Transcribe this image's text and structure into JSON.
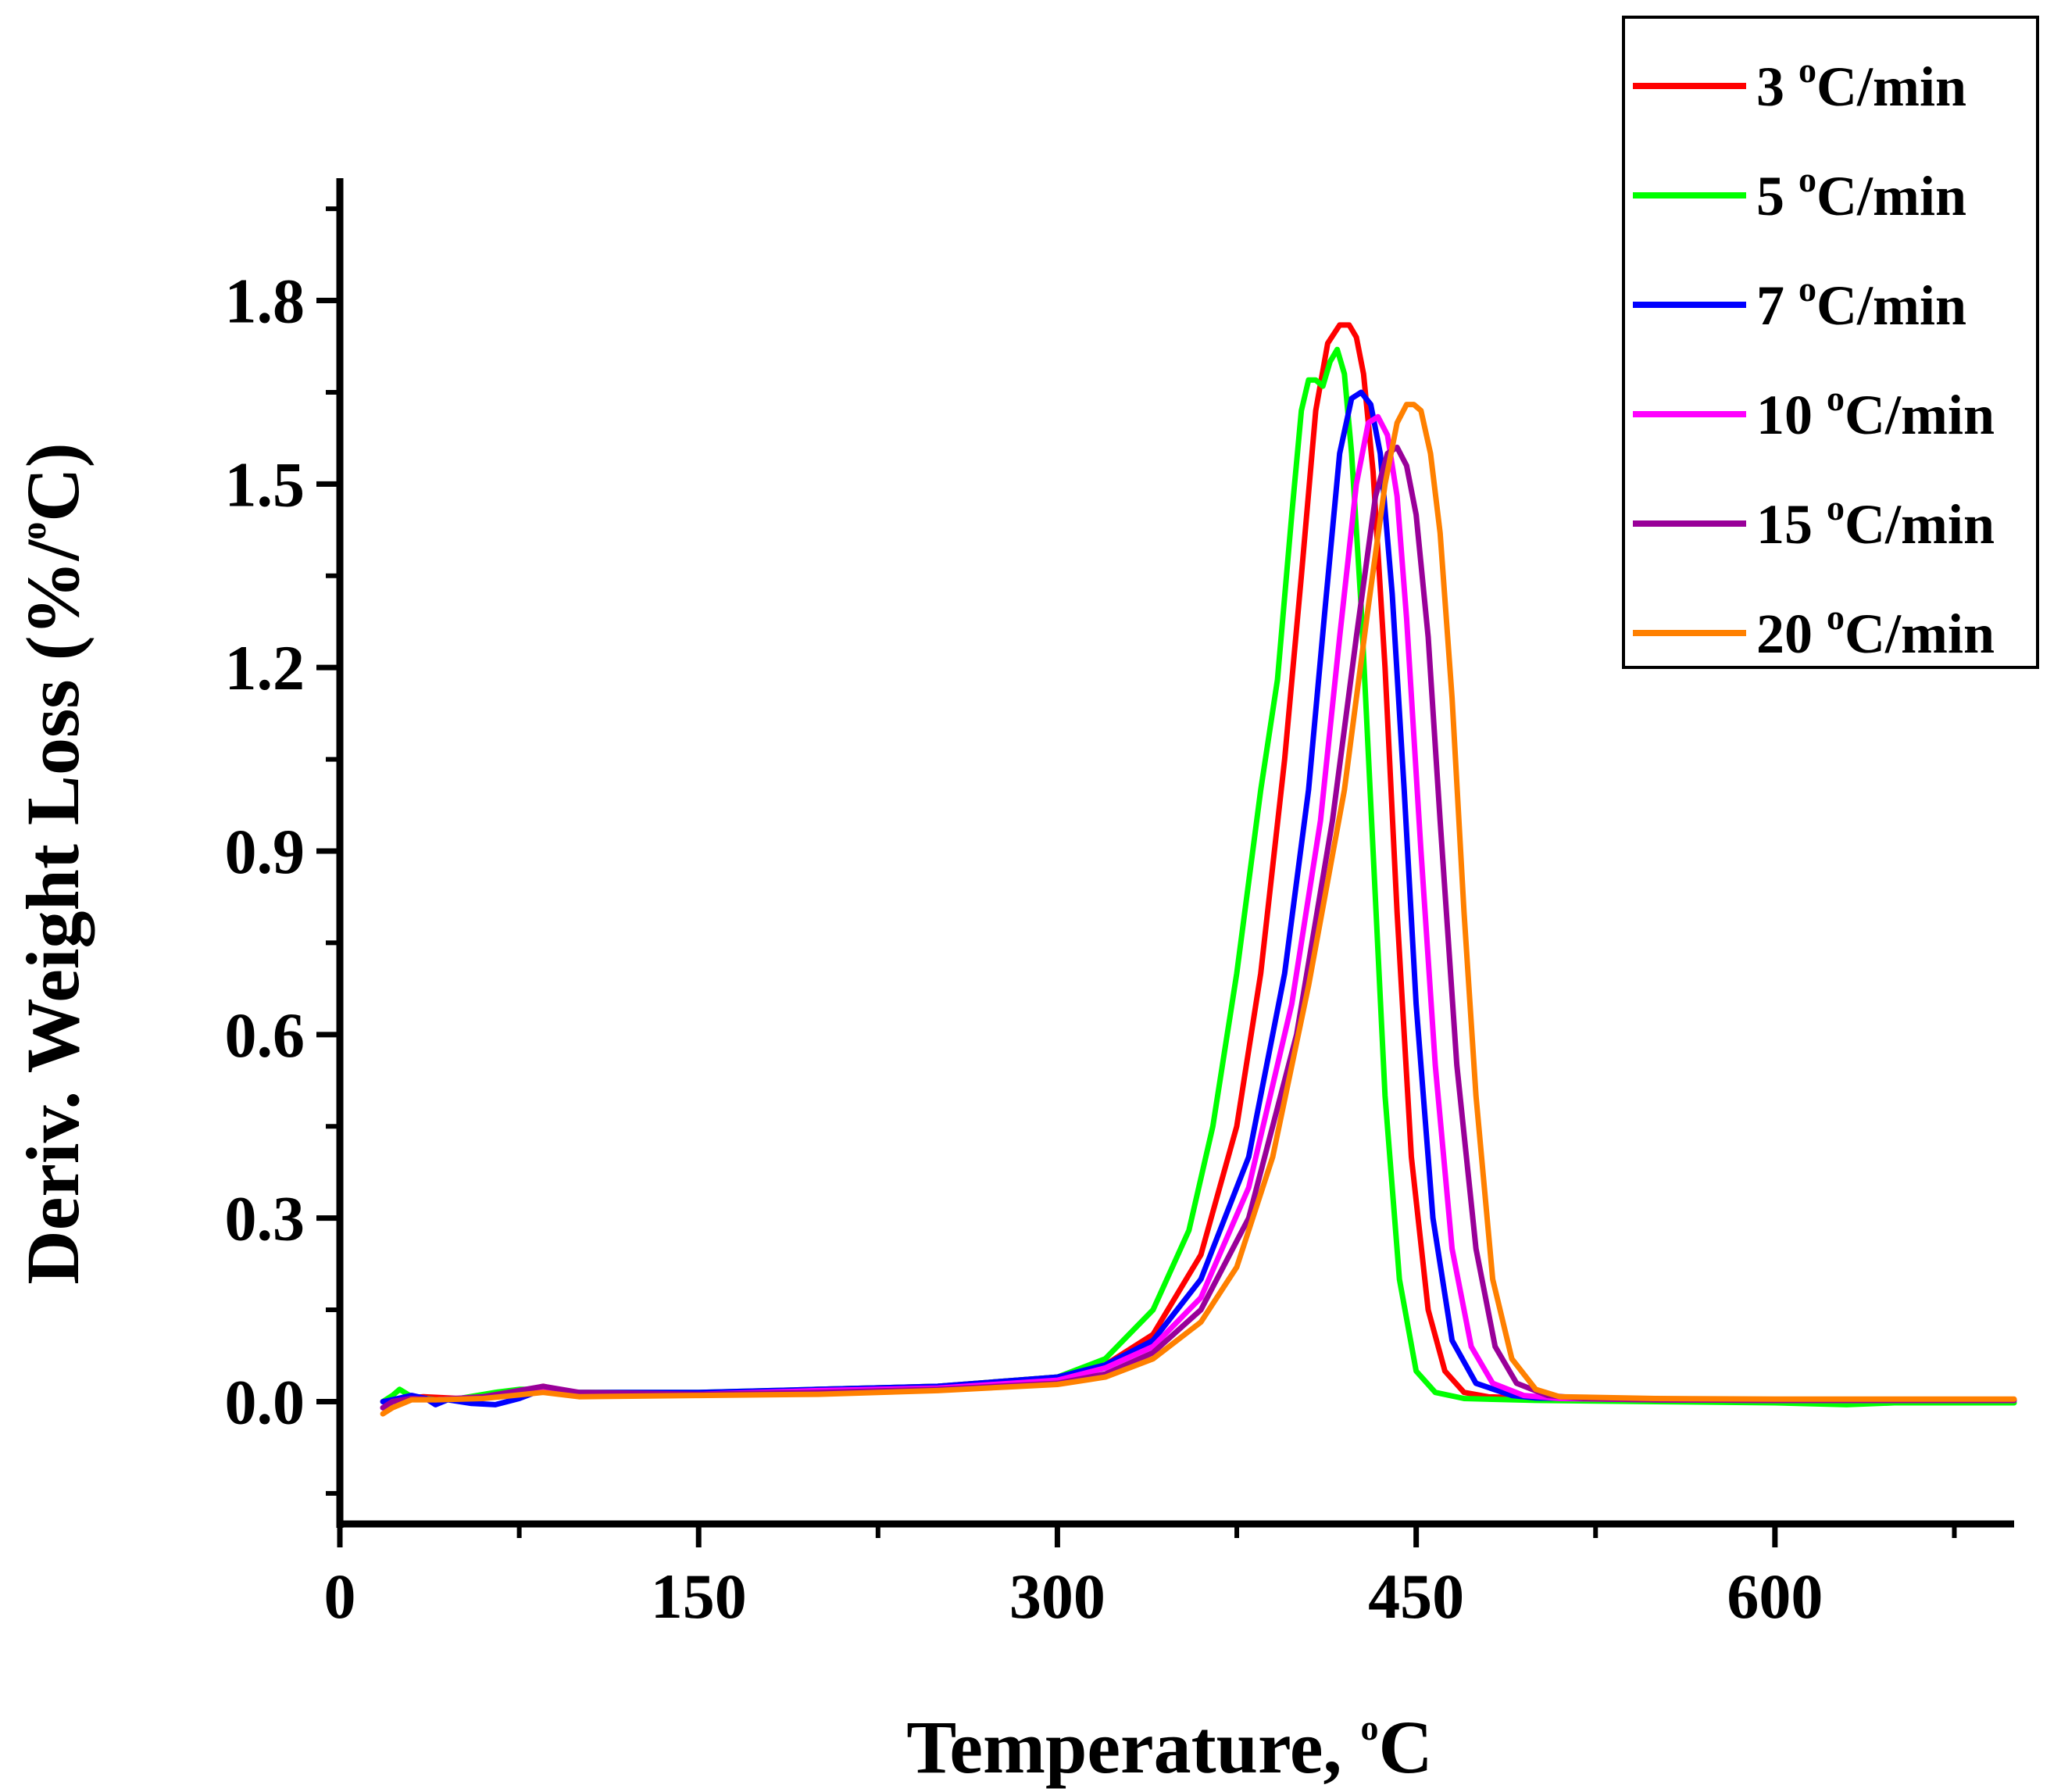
{
  "chart_data": {
    "type": "line",
    "title": "",
    "xlabel": "Temperature, ",
    "xlabel_sup": "o",
    "xlabel_end": "C",
    "ylabel": "Deriv. Weight Loss (%/",
    "ylabel_sup": "o",
    "ylabel_end": "C)",
    "xlim": [
      0,
      700
    ],
    "ylim": [
      -0.2,
      2.0
    ],
    "xticks": [
      0,
      150,
      300,
      450,
      600
    ],
    "xtick_labels": [
      "0",
      "150",
      "300",
      "450",
      "600"
    ],
    "yticks": [
      0.0,
      0.3,
      0.6,
      0.9,
      1.2,
      1.5,
      1.8
    ],
    "ytick_labels": [
      "0.0",
      "0.3",
      "0.6",
      "0.9",
      "1.2",
      "1.5",
      "1.8"
    ],
    "grid": false,
    "legend_position": "top-right",
    "series": [
      {
        "name": "3 oC/min",
        "label_main": "3 ",
        "label_sup": "o",
        "label_unit": "C/min",
        "color": "#ff0000",
        "x": [
          18,
          25,
          35,
          50,
          70,
          85,
          100,
          150,
          200,
          250,
          300,
          320,
          340,
          360,
          375,
          385,
          395,
          402,
          408,
          413,
          418,
          422,
          425,
          428,
          432,
          437,
          442,
          448,
          455,
          462,
          470,
          480,
          500,
          550,
          600,
          650,
          700
        ],
        "y": [
          0.0,
          0.005,
          0.008,
          0.005,
          0.01,
          0.025,
          0.012,
          0.012,
          0.02,
          0.025,
          0.04,
          0.06,
          0.11,
          0.24,
          0.45,
          0.7,
          1.05,
          1.35,
          1.62,
          1.73,
          1.76,
          1.76,
          1.74,
          1.68,
          1.52,
          1.2,
          0.8,
          0.4,
          0.15,
          0.05,
          0.015,
          0.008,
          0.005,
          0.003,
          0.002,
          0.002,
          0.002
        ]
      },
      {
        "name": "5 oC/min",
        "label_main": "5 ",
        "label_sup": "o",
        "label_unit": "C/min",
        "color": "#00ff00",
        "x": [
          18,
          22,
          25,
          30,
          40,
          50,
          65,
          75,
          85,
          100,
          150,
          200,
          250,
          300,
          320,
          340,
          355,
          365,
          375,
          385,
          392,
          398,
          402,
          405,
          408,
          411,
          414,
          417,
          420,
          423,
          427,
          432,
          437,
          443,
          450,
          458,
          470,
          500,
          550,
          600,
          630,
          650,
          700
        ],
        "y": [
          0.0,
          0.01,
          0.02,
          0.008,
          0.003,
          0.005,
          0.015,
          0.02,
          0.02,
          0.015,
          0.015,
          0.02,
          0.025,
          0.04,
          0.07,
          0.15,
          0.28,
          0.45,
          0.7,
          1.0,
          1.18,
          1.45,
          1.62,
          1.67,
          1.67,
          1.66,
          1.7,
          1.72,
          1.68,
          1.55,
          1.3,
          0.9,
          0.5,
          0.2,
          0.05,
          0.015,
          0.005,
          0.002,
          0.0,
          -0.002,
          -0.005,
          -0.002,
          -0.002
        ]
      },
      {
        "name": "7 oC/min",
        "label_main": "7 ",
        "label_sup": "o",
        "label_unit": "C/min",
        "color": "#0000ff",
        "x": [
          18,
          22,
          30,
          36,
          40,
          45,
          55,
          65,
          75,
          85,
          100,
          150,
          200,
          250,
          300,
          320,
          340,
          360,
          380,
          395,
          405,
          412,
          418,
          423,
          427,
          431,
          435,
          440,
          445,
          450,
          457,
          465,
          475,
          490,
          500,
          550,
          600,
          650,
          700
        ],
        "y": [
          0.0,
          0.003,
          0.01,
          0.005,
          -0.005,
          0.003,
          -0.003,
          -0.005,
          0.005,
          0.02,
          0.015,
          0.015,
          0.02,
          0.025,
          0.04,
          0.06,
          0.1,
          0.2,
          0.4,
          0.7,
          1.0,
          1.3,
          1.55,
          1.64,
          1.65,
          1.63,
          1.55,
          1.32,
          1.0,
          0.65,
          0.3,
          0.1,
          0.03,
          0.01,
          0.006,
          0.003,
          0.002,
          0.002,
          0.002
        ]
      },
      {
        "name": "10 oC/min",
        "label_main": "10 ",
        "label_sup": "o",
        "label_unit": "C/min",
        "color": "#ff00ff",
        "x": [
          18,
          22,
          30,
          40,
          60,
          80,
          100,
          150,
          200,
          250,
          300,
          320,
          340,
          360,
          380,
          398,
          410,
          418,
          425,
          430,
          434,
          438,
          442,
          446,
          452,
          458,
          465,
          473,
          482,
          495,
          510,
          550,
          600,
          650,
          700
        ],
        "y": [
          -0.01,
          0.0,
          0.005,
          0.003,
          0.008,
          0.02,
          0.012,
          0.012,
          0.018,
          0.022,
          0.035,
          0.055,
          0.09,
          0.17,
          0.35,
          0.65,
          0.95,
          1.25,
          1.5,
          1.6,
          1.61,
          1.58,
          1.48,
          1.28,
          0.9,
          0.55,
          0.25,
          0.09,
          0.03,
          0.01,
          0.005,
          0.003,
          0.002,
          0.002,
          0.002
        ]
      },
      {
        "name": "15 oC/min",
        "label_main": "15 ",
        "label_sup": "o",
        "label_unit": "C/min",
        "color": "#990099",
        "x": [
          18,
          22,
          30,
          40,
          60,
          85,
          100,
          150,
          200,
          250,
          300,
          320,
          340,
          360,
          380,
          400,
          415,
          425,
          433,
          438,
          442,
          446,
          450,
          455,
          460,
          467,
          475,
          483,
          492,
          505,
          520,
          550,
          600,
          650,
          700
        ],
        "y": [
          -0.01,
          0.0,
          0.005,
          0.003,
          0.008,
          0.025,
          0.015,
          0.012,
          0.015,
          0.02,
          0.03,
          0.045,
          0.08,
          0.15,
          0.3,
          0.6,
          0.95,
          1.25,
          1.48,
          1.55,
          1.56,
          1.53,
          1.45,
          1.25,
          0.95,
          0.55,
          0.25,
          0.09,
          0.03,
          0.01,
          0.005,
          0.003,
          0.002,
          0.002,
          0.002
        ]
      },
      {
        "name": "20 oC/min",
        "label_main": "20 ",
        "label_sup": "o",
        "label_unit": "C/min",
        "color": "#ff8000",
        "x": [
          18,
          22,
          30,
          40,
          60,
          85,
          100,
          150,
          200,
          250,
          300,
          320,
          340,
          360,
          375,
          390,
          405,
          420,
          430,
          437,
          442,
          446,
          449,
          452,
          456,
          460,
          465,
          470,
          475,
          482,
          490,
          500,
          510,
          550,
          600,
          650,
          700
        ],
        "y": [
          -0.02,
          -0.01,
          0.003,
          0.003,
          0.005,
          0.015,
          0.008,
          0.01,
          0.012,
          0.018,
          0.028,
          0.04,
          0.07,
          0.13,
          0.22,
          0.4,
          0.68,
          1.0,
          1.3,
          1.5,
          1.6,
          1.63,
          1.63,
          1.62,
          1.55,
          1.42,
          1.15,
          0.8,
          0.5,
          0.2,
          0.07,
          0.02,
          0.008,
          0.005,
          0.004,
          0.004,
          0.004
        ]
      }
    ]
  }
}
